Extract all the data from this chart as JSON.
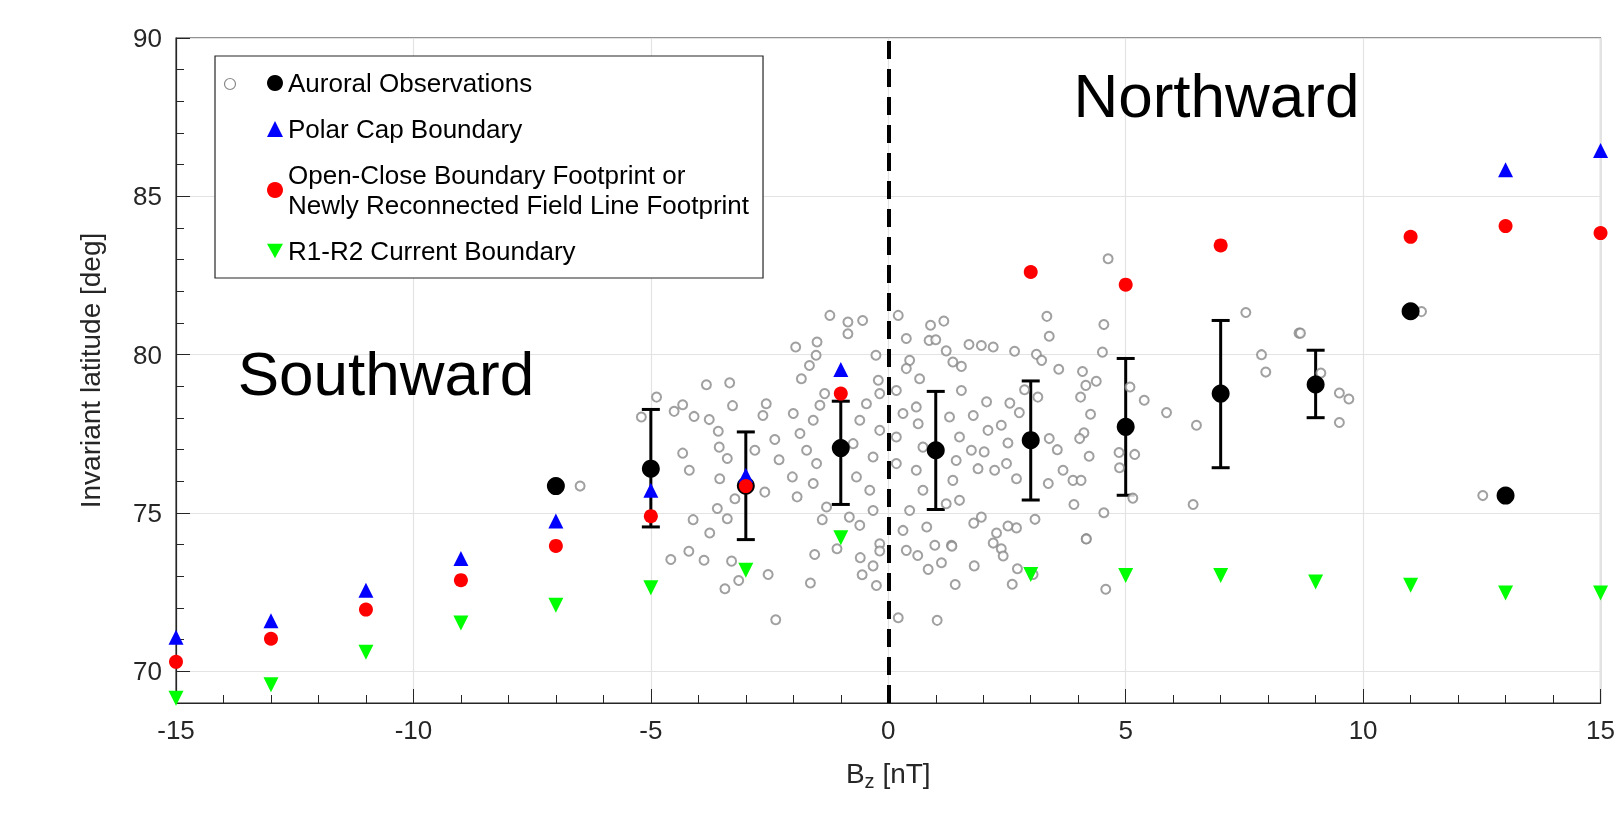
{
  "chart_data": {
    "type": "scatter",
    "xlabel": "B$_{z}$ [nT]",
    "ylabel": "Invariant latitude [deg]",
    "xlim": [
      -15,
      15
    ],
    "xticks": [
      -15,
      -10,
      -5,
      0,
      5,
      10,
      15
    ],
    "ylim": [
      69,
      90
    ],
    "yticks": [
      70,
      75,
      80,
      85,
      90
    ],
    "grid": true,
    "legend": "top left",
    "annotations": [
      "Southward",
      "Northward"
    ],
    "ref_lines": [
      {
        "axis": "x",
        "value": 0,
        "color": "#000000",
        "line_style": "dashed"
      }
    ],
    "series": [
      {
        "color": "#888888",
        "marker": "circle-open",
        "x": [
          -4.88,
          -4.51,
          -4.33,
          -4.09,
          -4.33,
          -4.19,
          -4.11,
          -3.83,
          -3.34,
          -3.28,
          -3.77,
          -3.58,
          -3.56,
          -3.39,
          -3.55,
          -3.6,
          -3.39,
          -3.76,
          -3.23,
          -2.81,
          -2.57,
          -2.64,
          -2.39,
          -2.6,
          -2.3,
          -2.0,
          -1.95,
          -1.83,
          -1.66,
          -1.5,
          -1.52,
          -1.23,
          -0.85,
          -0.54,
          -0.85,
          -0.26,
          0.21,
          0.38,
          0.89,
          1.17,
          0.86,
          1.0,
          1.22,
          1.36,
          1.54,
          0.45,
          0.38,
          -1.34,
          -1.44,
          -1.58,
          -1.86,
          -1.72,
          -1.51,
          -2.02,
          -1.92,
          -1.58,
          -1.3,
          -1.39,
          -0.82,
          -0.6,
          -0.32,
          -0.39,
          -0.67,
          -0.74,
          -0.6,
          -0.46,
          -0.21,
          -0.18,
          -0.18,
          -0.32,
          0.17,
          0.17,
          0.31,
          0.17,
          0.66,
          0.59,
          0.63,
          0.73,
          0.59,
          0.73,
          0.45,
          0.31,
          0.81,
          1.22,
          1.5,
          1.36,
          1.43,
          1.5,
          1.29,
          1.54,
          -0.18,
          0.98,
          1.33,
          -4.58,
          -4.2,
          -3.88,
          -3.3,
          -3.44,
          -3.15,
          -2.53,
          -2.37,
          -1.55,
          -1.64,
          -1.08,
          -0.59,
          -0.55,
          -0.32,
          -0.25,
          -0.18,
          0.21,
          0.38,
          0.62,
          0.84,
          1.03,
          1.12,
          1.34,
          1.41,
          4.63,
          3.34,
          3.39,
          4.54,
          4.51,
          1.7,
          1.96,
          2.21,
          2.66,
          3.12,
          3.23,
          3.59,
          4.09,
          4.38,
          4.16,
          4.26,
          4.05,
          4.12,
          4.03,
          4.23,
          3.56,
          3.39,
          3.15,
          2.87,
          2.76,
          2.56,
          2.07,
          1.79,
          2.1,
          2.38,
          2.52,
          2.02,
          1.75,
          1.89,
          2.24,
          2.49,
          2.7,
          3.37,
          3.68,
          3.89,
          4.06,
          3.91,
          3.09,
          2.7,
          2.52,
          2.28,
          1.8,
          1.96,
          4.54,
          4.17,
          5.09,
          5.39,
          4.86,
          5.19,
          4.87,
          5.15,
          5.86,
          6.49,
          6.42,
          7.53,
          7.86,
          7.95,
          8.65,
          1.81,
          2.21,
          2.38,
          2.42,
          2.61,
          2.72,
          3.05,
          4.17,
          4.58,
          8.68,
          9.11,
          9.5,
          9.7,
          9.5,
          11.23,
          12.52,
          -6.49,
          -5.2
        ],
        "values": [
          78.66,
          78.21,
          78.42,
          78.05,
          76.89,
          76.35,
          74.79,
          79.05,
          79.11,
          78.39,
          77.95,
          77.58,
          77.08,
          76.72,
          76.08,
          75.14,
          74.82,
          74.37,
          75.45,
          76.98,
          78.45,
          78.08,
          77.32,
          75.66,
          76.68,
          78.14,
          80.24,
          79.24,
          79.66,
          80.4,
          79.98,
          81.24,
          81.03,
          81.08,
          80.66,
          79.98,
          81.24,
          80.51,
          80.93,
          81.06,
          80.45,
          80.47,
          80.12,
          79.77,
          79.63,
          79.82,
          79.56,
          78.77,
          78.4,
          77.93,
          77.51,
          76.98,
          76.56,
          76.14,
          75.51,
          75.93,
          75.19,
          74.79,
          74.87,
          74.61,
          75.08,
          75.72,
          76.14,
          77.19,
          77.93,
          78.45,
          79.19,
          78.77,
          77.61,
          76.77,
          76.56,
          77.4,
          78.14,
          78.87,
          79.24,
          78.35,
          77.82,
          77.08,
          76.35,
          75.72,
          75.08,
          74.45,
          74.56,
          75.29,
          75.4,
          76.03,
          76.66,
          77.4,
          78.03,
          78.87,
          74.03,
          73.98,
          73.98,
          73.53,
          73.79,
          73.51,
          73.48,
          72.61,
          72.87,
          73.06,
          71.63,
          73.69,
          72.79,
          73.87,
          73.59,
          73.05,
          73.33,
          72.71,
          73.8,
          71.69,
          73.82,
          73.66,
          73.22,
          71.61,
          73.43,
          73.95,
          72.74,
          83.03,
          81.21,
          80.58,
          80.95,
          80.08,
          80.32,
          80.29,
          80.24,
          80.11,
          80.01,
          79.82,
          79.54,
          79.47,
          79.16,
          79.03,
          78.12,
          78.66,
          77.53,
          77.35,
          76.79,
          77.0,
          77.35,
          78.66,
          78.89,
          78.17,
          78.47,
          78.51,
          78.08,
          77.61,
          77.77,
          77.21,
          76.93,
          76.98,
          76.4,
          76.35,
          76.56,
          76.08,
          75.93,
          76.35,
          76.03,
          76.03,
          75.27,
          74.8,
          74.53,
          74.59,
          74.37,
          74.68,
          74.87,
          75.01,
          74.19,
          78.98,
          78.56,
          76.91,
          76.85,
          76.43,
          75.47,
          78.17,
          77.77,
          75.27,
          81.33,
          80.0,
          79.45,
          80.68,
          73.33,
          74.05,
          73.87,
          73.64,
          72.75,
          73.24,
          73.06,
          74.18,
          72.59,
          80.68,
          79.42,
          78.79,
          78.6,
          77.86,
          81.36,
          75.55,
          75.85,
          78.03
        ]
      },
      {
        "name": "Auroral Observations",
        "color": "#000000",
        "marker": "circle",
        "x": [
          -7,
          -5,
          -3,
          -1,
          1,
          3,
          5,
          7,
          9,
          11,
          13
        ],
        "values": [
          75.85,
          76.4,
          75.86,
          77.05,
          76.98,
          77.3,
          77.72,
          78.77,
          79.06,
          81.37,
          75.55
        ],
        "errors": [
          null,
          [
            74.56,
            78.27
          ],
          [
            74.16,
            77.56
          ],
          [
            75.27,
            78.53
          ],
          [
            75.11,
            78.84
          ],
          [
            75.41,
            79.17
          ],
          [
            75.56,
            79.88
          ],
          [
            76.43,
            81.08
          ],
          [
            78.01,
            80.14
          ],
          null,
          null
        ]
      },
      {
        "name": "Polar Cap Boundary",
        "color": "#0000ff",
        "marker": "triangle",
        "x": [
          -15,
          -13,
          -11,
          -9,
          -7,
          -5,
          -3,
          -1,
          13,
          15
        ],
        "values": [
          71.08,
          71.6,
          72.56,
          73.56,
          74.75,
          75.72,
          76.19,
          79.53,
          85.84,
          86.45
        ]
      },
      {
        "name": "Open-Close Boundary Footprint or\nNewly Reconnected Field Line Footprint",
        "color": "#ff0000",
        "marker": "circle",
        "x": [
          -15,
          -13,
          -11,
          -9,
          -7,
          -5,
          -3,
          -1,
          3,
          5,
          7,
          11,
          13,
          15
        ],
        "values": [
          70.3,
          71.03,
          71.95,
          72.88,
          73.96,
          74.9,
          75.85,
          78.77,
          82.61,
          82.21,
          83.45,
          83.72,
          84.06,
          83.84
        ]
      },
      {
        "name": "R1-R2 Current Boundary",
        "color": "#00ff00",
        "marker": "triangle-down",
        "x": [
          -15,
          -13,
          -11,
          -9,
          -7,
          -5,
          -3,
          -1,
          3,
          5,
          7,
          9,
          11,
          13,
          15
        ],
        "values": [
          69.15,
          69.58,
          70.6,
          71.53,
          72.09,
          72.64,
          73.19,
          74.22,
          73.06,
          73.03,
          73.03,
          72.82,
          72.72,
          72.47,
          72.47
        ]
      }
    ]
  }
}
